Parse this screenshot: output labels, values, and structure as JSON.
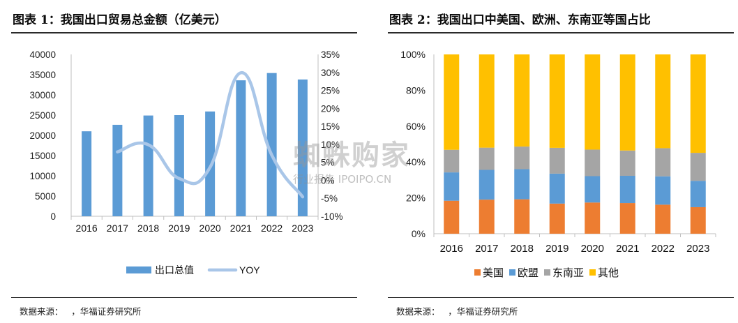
{
  "left": {
    "title": "图表 1：我国出口贸易总金额（亿美元）",
    "source_label": "数据来源：",
    "source_org": "，华福证券研究所"
  },
  "right": {
    "title": "图表 2：我国出口中美国、欧洲、东南亚等国占比",
    "source_label": "数据来源：",
    "source_org": "，华福证券研究所"
  },
  "watermark": {
    "main": "蜘蛛购家",
    "sub": "行业报告 IPOIPO.CN"
  },
  "colors": {
    "bar_blue": "#5b9bd5",
    "line_light_blue": "#a9c6e8",
    "us_orange": "#ed7d31",
    "eu_blue": "#5b9bd5",
    "asean_gray": "#a5a5a5",
    "other_yellow": "#ffc000"
  },
  "chart_data": [
    {
      "type": "bar",
      "categories": [
        "2016",
        "2017",
        "2018",
        "2019",
        "2020",
        "2021",
        "2022",
        "2023"
      ],
      "series": [
        {
          "name": "出口总值",
          "type": "bar",
          "axis": "left",
          "values": [
            21000,
            22600,
            24900,
            25000,
            25900,
            33600,
            35400,
            33800
          ]
        },
        {
          "name": "YOY",
          "type": "line",
          "axis": "right",
          "smooth": true,
          "values": [
            null,
            7.9,
            9.9,
            0.5,
            3.6,
            29.9,
            7.0,
            -4.6
          ]
        }
      ],
      "left_ticks": [
        "0",
        "5000",
        "10000",
        "15000",
        "20000",
        "25000",
        "30000",
        "35000",
        "40000"
      ],
      "right_ticks": [
        "-10%",
        "-5%",
        "0%",
        "5%",
        "10%",
        "15%",
        "20%",
        "25%",
        "30%",
        "35%"
      ],
      "ylim_left": [
        0,
        40000
      ],
      "ylim_right": [
        -10,
        35
      ],
      "legend_position": "bottom"
    },
    {
      "type": "bar",
      "stacked": true,
      "categories": [
        "2016",
        "2017",
        "2018",
        "2019",
        "2020",
        "2021",
        "2022",
        "2023"
      ],
      "series": [
        {
          "name": "美国",
          "values": [
            18.4,
            19.0,
            19.2,
            16.8,
            17.4,
            17.1,
            16.2,
            14.8
          ]
        },
        {
          "name": "欧盟",
          "values": [
            15.8,
            16.6,
            16.8,
            16.7,
            14.7,
            15.2,
            15.8,
            14.7
          ]
        },
        {
          "name": "东南亚",
          "values": [
            12.6,
            12.4,
            12.6,
            14.4,
            14.8,
            14.1,
            15.7,
            15.6
          ]
        },
        {
          "name": "其他",
          "values": [
            53.2,
            52.0,
            51.4,
            52.1,
            53.1,
            53.6,
            52.3,
            54.9
          ]
        }
      ],
      "y_ticks": [
        "0%",
        "20%",
        "40%",
        "60%",
        "80%",
        "100%"
      ],
      "ylim": [
        0,
        100
      ],
      "legend_position": "bottom"
    }
  ]
}
